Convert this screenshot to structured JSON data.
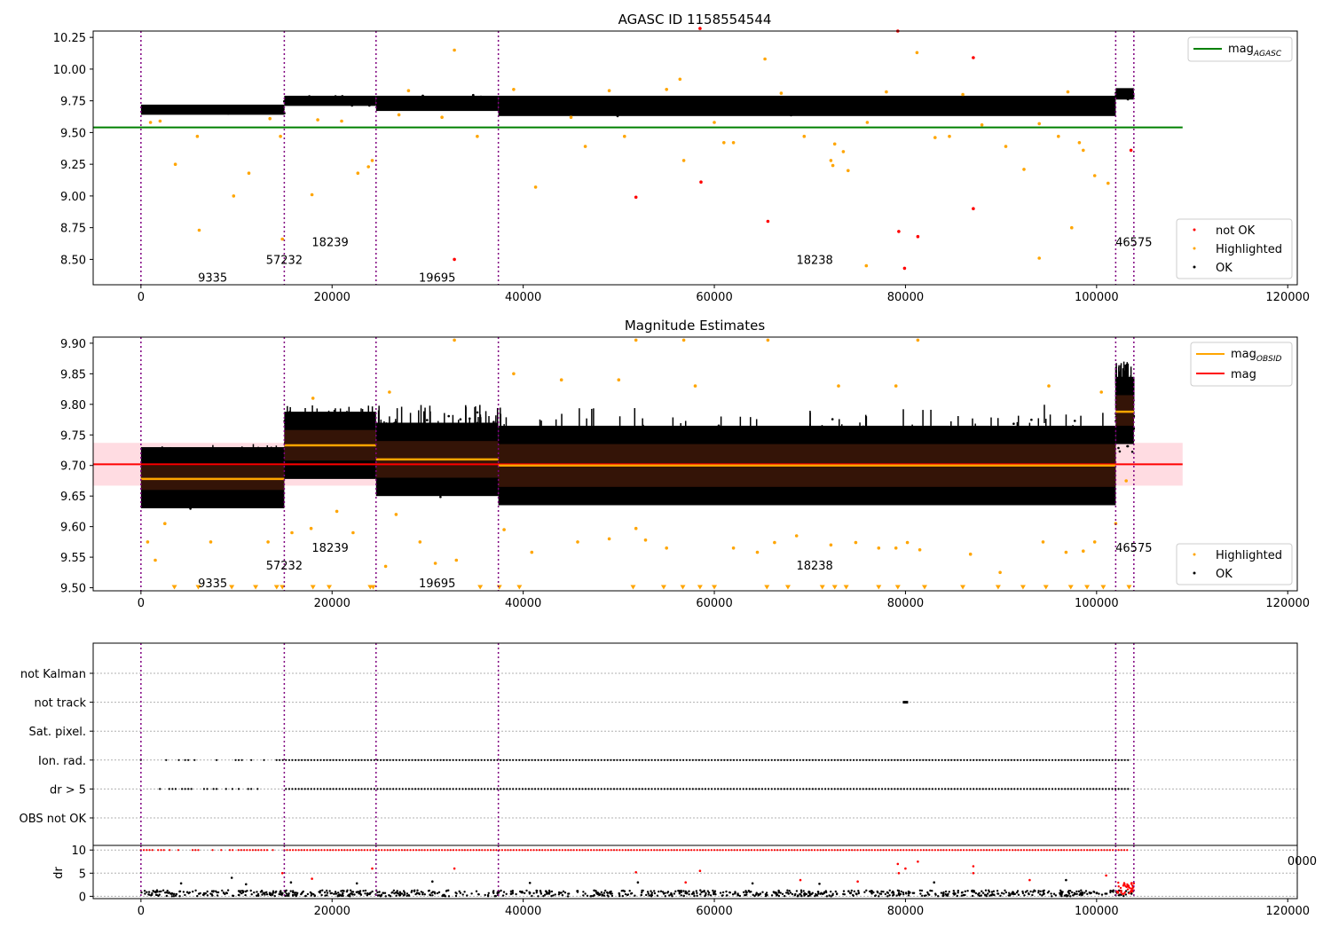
{
  "window": {
    "title": "AGASC ID 1158554544"
  },
  "colors": {
    "ok": "#000000",
    "highlighted": "#ffa500",
    "not_ok": "#ff0000",
    "agasc_line": "#008000",
    "obsid_line": "#ffa500",
    "mag_line": "#ff0000",
    "mag_band": "#ffc0cb",
    "obsid_boundary": "#800080",
    "obsid_box": "#3a1608"
  },
  "chart_data": [
    {
      "type": "scatter",
      "title": "AGASC ID 1158554544",
      "xlim": [
        -5000,
        121000
      ],
      "ylim": [
        8.3,
        10.3
      ],
      "xticks": [
        "0",
        "20000",
        "40000",
        "60000",
        "80000",
        "100000",
        "120000"
      ],
      "yticks": [
        "8.50",
        "8.75",
        "9.00",
        "9.25",
        "9.50",
        "9.75",
        "10.00",
        "10.25"
      ],
      "grid": false,
      "legend_top": {
        "placement": "top-right",
        "entries": [
          {
            "label": "mag",
            "subscript": "AGASC"
          }
        ]
      },
      "legend_bottom": {
        "placement": "bottom-right",
        "entries": [
          "not OK",
          "Highlighted",
          "OK"
        ]
      },
      "mag_agasc": 9.54,
      "obsid_boundaries": [
        0,
        15000,
        24600,
        37400,
        102000,
        103900
      ],
      "obsid_labels": [
        {
          "text": "9335",
          "x": 7500,
          "y": 8.36
        },
        {
          "text": "57232",
          "x": 15000,
          "y": 8.5
        },
        {
          "text": "18239",
          "x": 19800,
          "y": 8.64
        },
        {
          "text": "19695",
          "x": 31000,
          "y": 8.36
        },
        {
          "text": "18238",
          "x": 70500,
          "y": 8.5
        },
        {
          "text": "46575",
          "x": 103900,
          "y": 8.64
        }
      ],
      "ok_bands": [
        {
          "x": [
            0,
            15000
          ],
          "y": [
            9.64,
            9.72
          ]
        },
        {
          "x": [
            15000,
            24600
          ],
          "y": [
            9.71,
            9.79
          ]
        },
        {
          "x": [
            24600,
            37400
          ],
          "y": [
            9.67,
            9.79
          ]
        },
        {
          "x": [
            37400,
            102000
          ],
          "y": [
            9.63,
            9.79
          ]
        },
        {
          "x": [
            102000,
            103900
          ],
          "y": [
            9.76,
            9.85
          ]
        }
      ],
      "not_ok_points": [
        [
          58500,
          10.32
        ],
        [
          79200,
          10.3
        ],
        [
          87100,
          10.09
        ],
        [
          51800,
          8.99
        ],
        [
          58600,
          9.11
        ],
        [
          65600,
          8.8
        ],
        [
          79300,
          8.72
        ],
        [
          81300,
          8.68
        ],
        [
          79900,
          8.43
        ],
        [
          87100,
          8.9
        ],
        [
          32800,
          8.5
        ],
        [
          103600,
          9.36
        ]
      ],
      "highlighted_points": [
        [
          3600,
          9.25
        ],
        [
          6100,
          8.73
        ],
        [
          9700,
          9.0
        ],
        [
          11300,
          9.18
        ],
        [
          5900,
          9.47
        ],
        [
          14600,
          9.47
        ],
        [
          14800,
          8.66
        ],
        [
          17900,
          9.01
        ],
        [
          22700,
          9.18
        ],
        [
          24200,
          9.28
        ],
        [
          23800,
          9.23
        ],
        [
          32800,
          10.15
        ],
        [
          35200,
          9.47
        ],
        [
          41300,
          9.07
        ],
        [
          46500,
          9.39
        ],
        [
          50600,
          9.47
        ],
        [
          56800,
          9.28
        ],
        [
          56400,
          9.92
        ],
        [
          61000,
          9.42
        ],
        [
          62000,
          9.42
        ],
        [
          65300,
          10.08
        ],
        [
          69400,
          9.47
        ],
        [
          72600,
          9.41
        ],
        [
          72400,
          9.24
        ],
        [
          73500,
          9.35
        ],
        [
          75900,
          8.45
        ],
        [
          74000,
          9.2
        ],
        [
          81200,
          10.13
        ],
        [
          83100,
          9.46
        ],
        [
          90500,
          9.39
        ],
        [
          92400,
          9.21
        ],
        [
          94000,
          8.51
        ],
        [
          96000,
          9.47
        ],
        [
          97400,
          8.75
        ],
        [
          98200,
          9.42
        ],
        [
          98600,
          9.36
        ],
        [
          99800,
          9.16
        ],
        [
          101200,
          9.1
        ],
        [
          72200,
          9.28
        ],
        [
          84600,
          9.47
        ],
        [
          27000,
          9.64
        ],
        [
          31500,
          9.62
        ],
        [
          45000,
          9.62
        ],
        [
          60000,
          9.58
        ],
        [
          76000,
          9.58
        ],
        [
          88000,
          9.56
        ],
        [
          94000,
          9.57
        ],
        [
          1000,
          9.58
        ],
        [
          2000,
          9.59
        ],
        [
          13500,
          9.61
        ],
        [
          18500,
          9.6
        ],
        [
          21000,
          9.59
        ],
        [
          28000,
          9.83
        ],
        [
          39000,
          9.84
        ],
        [
          49000,
          9.83
        ],
        [
          55000,
          9.84
        ],
        [
          67000,
          9.81
        ],
        [
          78000,
          9.82
        ],
        [
          86000,
          9.8
        ],
        [
          97000,
          9.82
        ]
      ]
    },
    {
      "type": "scatter",
      "title": "Magnitude Estimates",
      "xlim": [
        -5000,
        121000
      ],
      "ylim": [
        9.495,
        9.91
      ],
      "xticks": [
        "0",
        "20000",
        "40000",
        "60000",
        "80000",
        "100000",
        "120000"
      ],
      "yticks": [
        "9.50",
        "9.55",
        "9.60",
        "9.65",
        "9.70",
        "9.75",
        "9.80",
        "9.85",
        "9.90"
      ],
      "grid": false,
      "legend_top": {
        "placement": "top-right",
        "entries": [
          {
            "label": "mag",
            "subscript": "OBSID"
          },
          {
            "label": "mag",
            "subscript": ""
          }
        ]
      },
      "legend_bottom": {
        "placement": "bottom-right",
        "entries": [
          "Highlighted",
          "OK"
        ]
      },
      "mag": 9.702,
      "mag_band": [
        9.667,
        9.737
      ],
      "obsid_boundaries": [
        0,
        15000,
        24600,
        37400,
        102000,
        103900
      ],
      "obsid_labels": [
        {
          "text": "9335",
          "x": 7500,
          "y": 9.508
        },
        {
          "text": "57232",
          "x": 15000,
          "y": 9.537
        },
        {
          "text": "18239",
          "x": 19800,
          "y": 9.566
        },
        {
          "text": "19695",
          "x": 31000,
          "y": 9.508
        },
        {
          "text": "18238",
          "x": 70500,
          "y": 9.537
        },
        {
          "text": "46575",
          "x": 103900,
          "y": 9.566
        }
      ],
      "mag_obsid": [
        {
          "x": [
            0,
            15000
          ],
          "y": 9.678,
          "box": [
            9.66,
            9.7
          ]
        },
        {
          "x": [
            15000,
            24600
          ],
          "y": 9.733,
          "box": [
            9.708,
            9.758
          ]
        },
        {
          "x": [
            24600,
            37400
          ],
          "y": 9.71,
          "box": [
            9.68,
            9.74
          ]
        },
        {
          "x": [
            37400,
            102000
          ],
          "y": 9.7,
          "box": [
            9.665,
            9.735
          ]
        },
        {
          "x": [
            102000,
            103900
          ],
          "y": 9.788,
          "box": [
            9.765,
            9.815
          ]
        }
      ],
      "ok_bands": [
        {
          "x": [
            0,
            15000
          ],
          "y": [
            9.625,
            9.735
          ]
        },
        {
          "x": [
            15000,
            24600
          ],
          "y": [
            9.69,
            9.8
          ]
        },
        {
          "x": [
            24600,
            37400
          ],
          "y": [
            9.64,
            9.8
          ]
        },
        {
          "x": [
            37400,
            102000
          ],
          "y": [
            9.625,
            9.8
          ]
        },
        {
          "x": [
            102000,
            103900
          ],
          "y": [
            9.71,
            9.87
          ]
        }
      ],
      "highlighted_points": [
        [
          700,
          9.575
        ],
        [
          1500,
          9.545
        ],
        [
          2500,
          9.605
        ],
        [
          7300,
          9.575
        ],
        [
          13300,
          9.575
        ],
        [
          15800,
          9.59
        ],
        [
          17800,
          9.597
        ],
        [
          20500,
          9.625
        ],
        [
          22200,
          9.59
        ],
        [
          25600,
          9.535
        ],
        [
          26700,
          9.62
        ],
        [
          29200,
          9.575
        ],
        [
          30800,
          9.54
        ],
        [
          33000,
          9.545
        ],
        [
          38000,
          9.595
        ],
        [
          40900,
          9.558
        ],
        [
          45700,
          9.575
        ],
        [
          49000,
          9.58
        ],
        [
          51800,
          9.597
        ],
        [
          52800,
          9.578
        ],
        [
          55000,
          9.565
        ],
        [
          62000,
          9.565
        ],
        [
          64500,
          9.558
        ],
        [
          66300,
          9.574
        ],
        [
          68600,
          9.585
        ],
        [
          72200,
          9.57
        ],
        [
          74800,
          9.574
        ],
        [
          77200,
          9.565
        ],
        [
          79000,
          9.565
        ],
        [
          80200,
          9.574
        ],
        [
          81500,
          9.562
        ],
        [
          86800,
          9.555
        ],
        [
          89900,
          9.525
        ],
        [
          94400,
          9.575
        ],
        [
          96800,
          9.558
        ],
        [
          98600,
          9.56
        ],
        [
          99800,
          9.575
        ],
        [
          102000,
          9.605
        ],
        [
          103100,
          9.675
        ],
        [
          32800,
          9.905
        ],
        [
          51800,
          9.905
        ],
        [
          56800,
          9.905
        ],
        [
          65600,
          9.905
        ],
        [
          81300,
          9.905
        ],
        [
          18000,
          9.81
        ],
        [
          26000,
          9.82
        ],
        [
          39000,
          9.85
        ],
        [
          44000,
          9.84
        ],
        [
          50000,
          9.84
        ],
        [
          58000,
          9.83
        ],
        [
          73000,
          9.83
        ],
        [
          79000,
          9.83
        ],
        [
          95000,
          9.83
        ],
        [
          100500,
          9.82
        ]
      ],
      "clipped_markers_x": [
        3500,
        6000,
        9500,
        12000,
        14200,
        14800,
        18000,
        19700,
        24000,
        24300,
        35500,
        37500,
        39600,
        51500,
        54700,
        56700,
        58500,
        60000,
        65500,
        67700,
        71300,
        72600,
        73800,
        77200,
        79200,
        82000,
        86000,
        89700,
        92300,
        94700,
        97300,
        99000,
        100700,
        103400
      ]
    },
    {
      "type": "scatter",
      "title": "",
      "xlim": [
        -5000,
        121000
      ],
      "categories": [
        "OBS not OK",
        "dr > 5",
        "Ion. rad.",
        "Sat. pixel.",
        "not track",
        "not Kalman"
      ],
      "grid": true,
      "flag_ranges": {
        "dr > 5": [
          0,
          103400
        ],
        "Ion. rad.": [
          0,
          103400
        ]
      },
      "not_track_x": [
        80000
      ]
    },
    {
      "type": "scatter",
      "title": "",
      "ylabel": "dr",
      "xlim": [
        -5000,
        121000
      ],
      "ylim": [
        -0.5,
        11
      ],
      "xticks": [
        "0",
        "20000",
        "40000",
        "60000",
        "80000",
        "100000",
        "120000"
      ],
      "yticks": [
        "0",
        "5",
        "10"
      ],
      "hidden_tick_fragment": "0000",
      "grid": true,
      "dr_ok_band": [
        0,
        1.3
      ],
      "dr_saturated": 10,
      "dr_red_points": [
        [
          14800,
          5.0
        ],
        [
          17900,
          3.8
        ],
        [
          24200,
          6.0
        ],
        [
          32800,
          6.0
        ],
        [
          51800,
          5.2
        ],
        [
          58500,
          5.5
        ],
        [
          79200,
          7.0
        ],
        [
          80000,
          6.0
        ],
        [
          81300,
          7.5
        ],
        [
          79300,
          5.0
        ],
        [
          87100,
          6.5
        ],
        [
          87100,
          5.0
        ],
        [
          93000,
          3.5
        ],
        [
          101000,
          4.5
        ],
        [
          57000,
          3.0
        ],
        [
          69000,
          3.5
        ],
        [
          75000,
          3.2
        ]
      ],
      "dr_black_points": [
        [
          4200,
          2.8
        ],
        [
          9500,
          4.0
        ],
        [
          11000,
          2.6
        ],
        [
          15700,
          3.0
        ],
        [
          22600,
          2.8
        ],
        [
          30500,
          3.2
        ],
        [
          40700,
          2.9
        ],
        [
          52000,
          3.0
        ],
        [
          64000,
          2.8
        ],
        [
          71000,
          2.7
        ],
        [
          83000,
          3.0
        ],
        [
          96800,
          3.5
        ]
      ]
    }
  ]
}
